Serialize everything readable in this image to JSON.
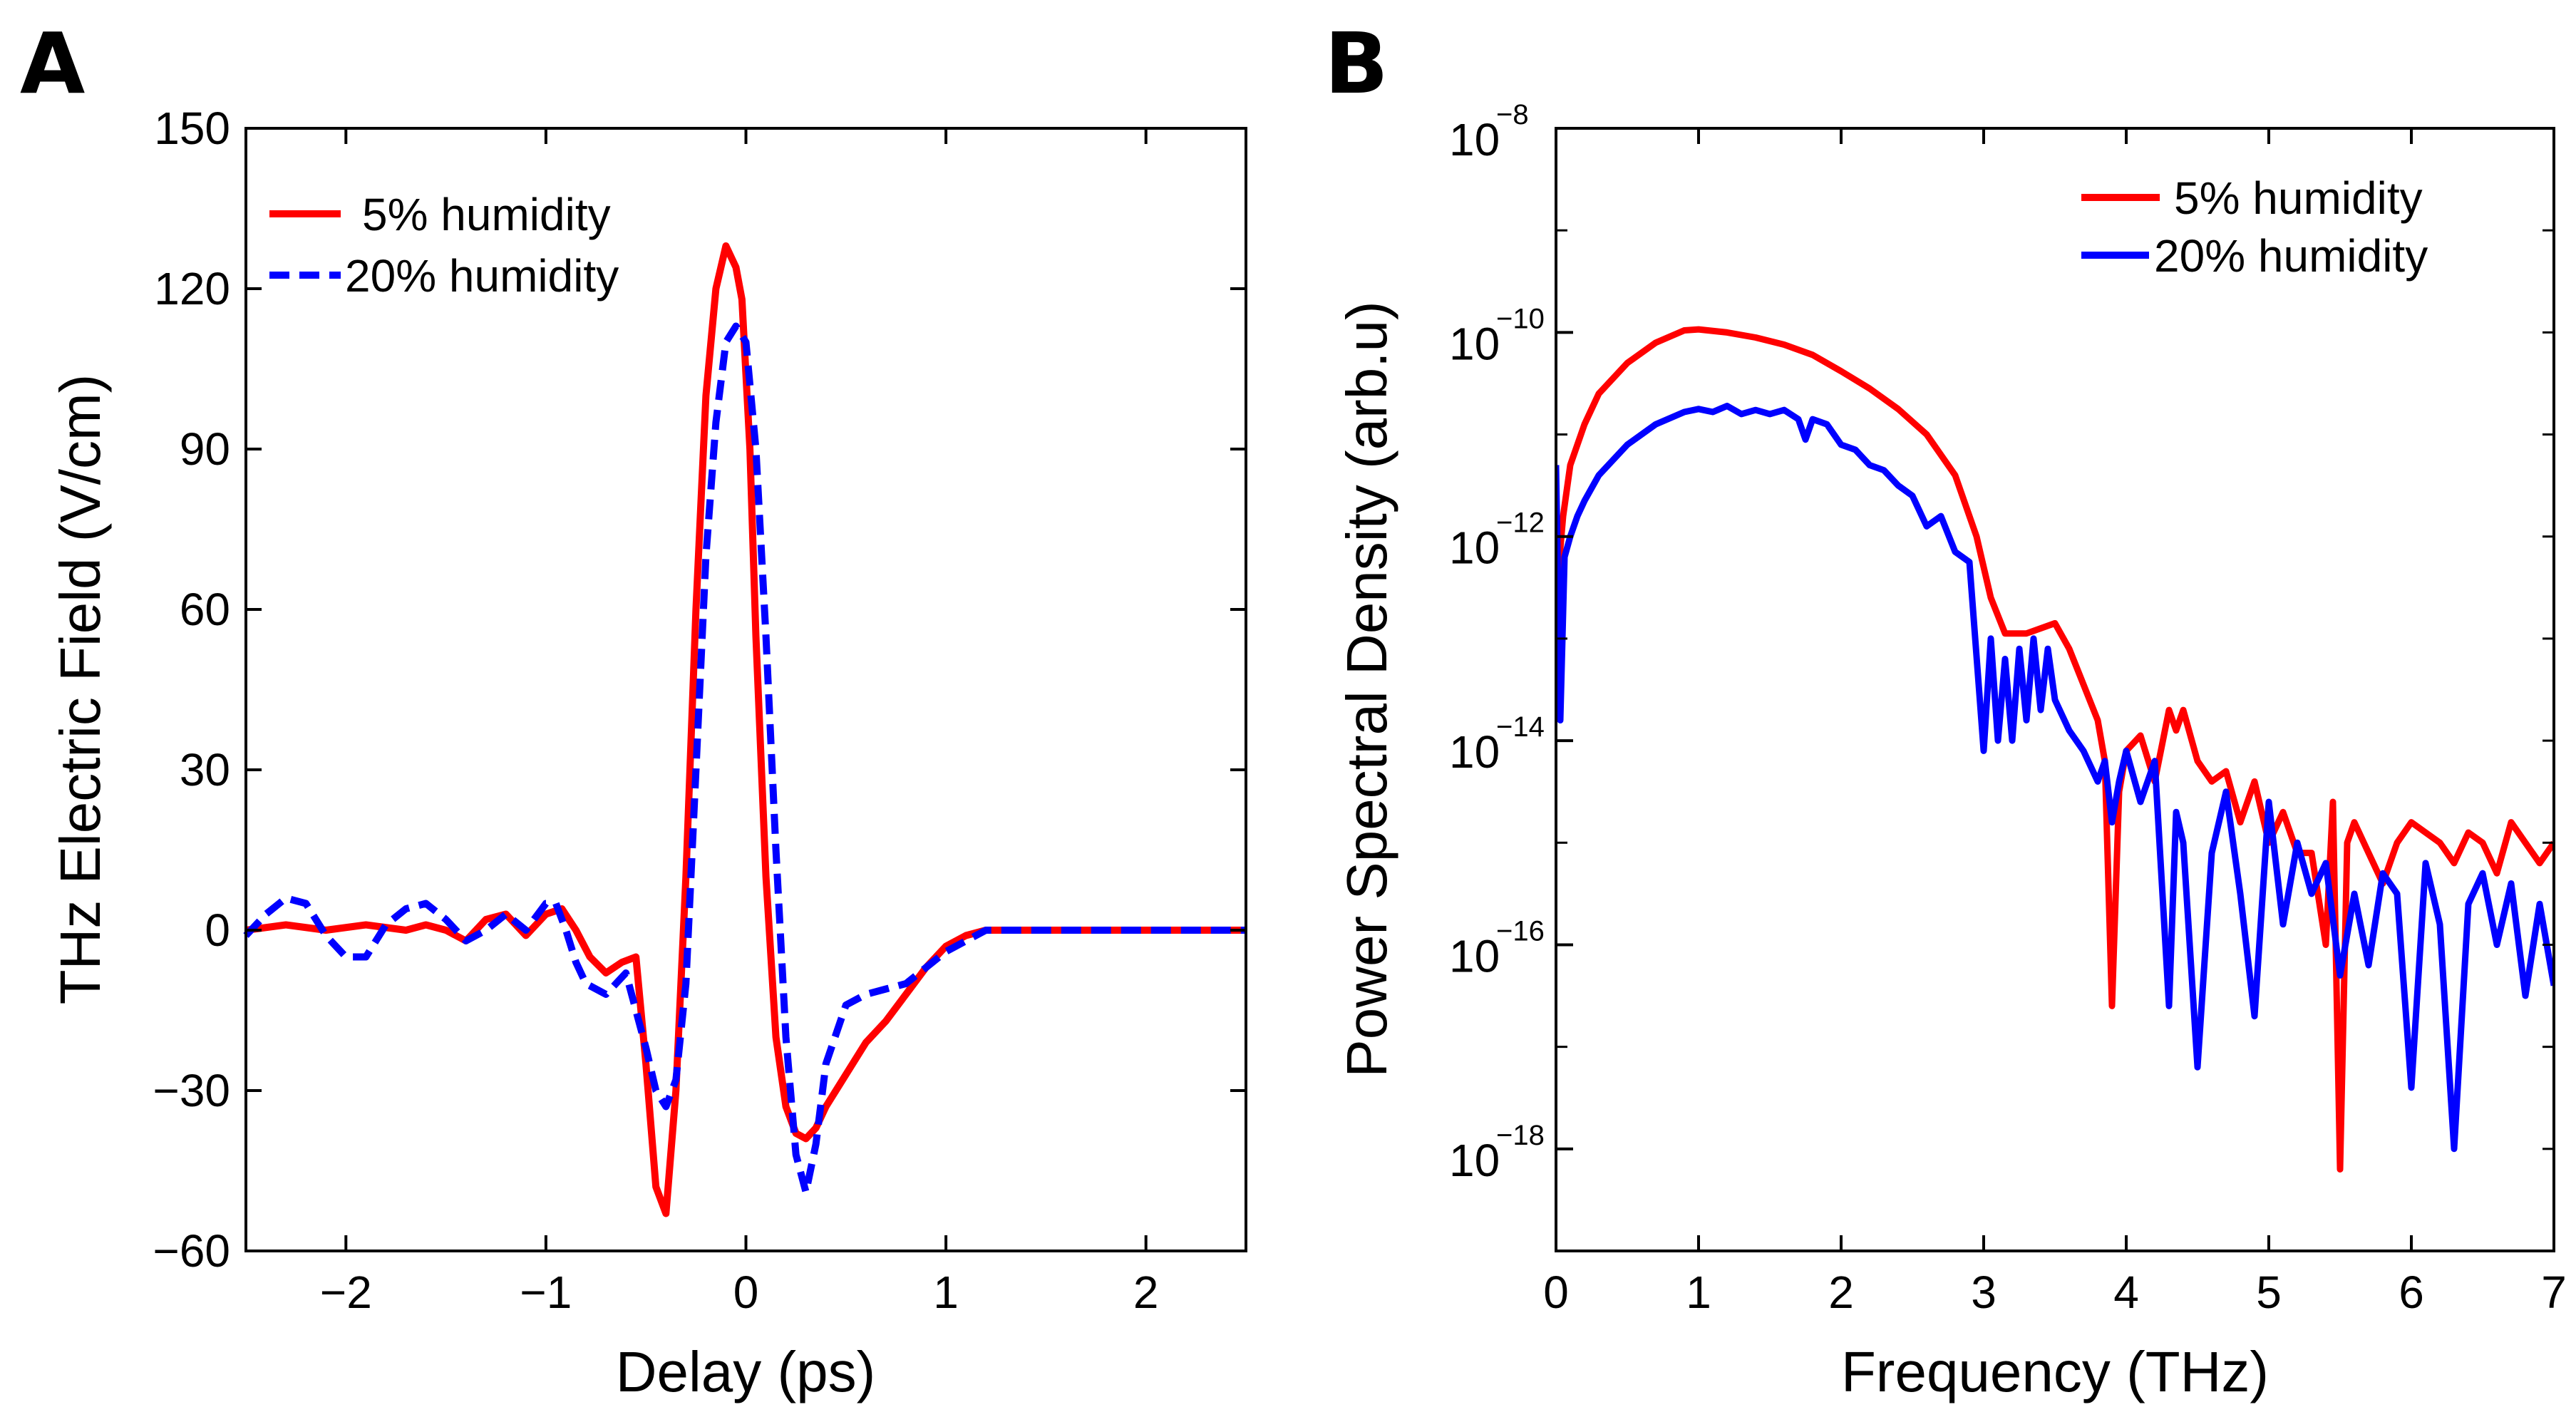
{
  "chart_data": [
    {
      "panel": "A",
      "type": "line",
      "xlabel": "Delay (ps)",
      "ylabel": "THz Electric Field (V/cm)",
      "xlim": [
        -2.5,
        2.5
      ],
      "ylim": [
        -60,
        150
      ],
      "xticks": [
        -2,
        -1,
        0,
        1,
        2
      ],
      "yticks": [
        -60,
        -30,
        0,
        30,
        60,
        90,
        120,
        150
      ],
      "xtick_labels": [
        "−2",
        "−1",
        "0",
        "1",
        "2"
      ],
      "ytick_labels": [
        "−60",
        "−30",
        "0",
        "30",
        "60",
        "90",
        "120",
        "150"
      ],
      "legend_position": "top-left",
      "series": [
        {
          "name": "5% humidity",
          "color": "#ff0000",
          "style": "solid",
          "x": [
            -2.5,
            -2.3,
            -2.1,
            -1.9,
            -1.7,
            -1.6,
            -1.5,
            -1.4,
            -1.3,
            -1.2,
            -1.1,
            -1.0,
            -0.92,
            -0.85,
            -0.78,
            -0.7,
            -0.62,
            -0.55,
            -0.5,
            -0.45,
            -0.4,
            -0.35,
            -0.3,
            -0.25,
            -0.2,
            -0.15,
            -0.1,
            -0.05,
            -0.02,
            0.02,
            0.05,
            0.1,
            0.15,
            0.2,
            0.25,
            0.3,
            0.35,
            0.4,
            0.5,
            0.6,
            0.7,
            0.8,
            0.9,
            1.0,
            1.1,
            1.2,
            1.4,
            1.7,
            2.0,
            2.5
          ],
          "y": [
            0,
            1,
            0,
            1,
            0,
            1,
            0,
            -2,
            2,
            3,
            -1,
            3,
            4,
            0,
            -5,
            -8,
            -6,
            -5,
            -25,
            -48,
            -53,
            -30,
            10,
            60,
            100,
            120,
            128,
            124,
            118,
            90,
            55,
            10,
            -20,
            -33,
            -38,
            -39,
            -37,
            -33,
            -27,
            -21,
            -17,
            -12,
            -7,
            -3,
            -1,
            0,
            0,
            0,
            0,
            0
          ]
        },
        {
          "name": "20% humidity",
          "color": "#0000ff",
          "style": "dashed",
          "x": [
            -2.5,
            -2.4,
            -2.3,
            -2.2,
            -2.1,
            -2.0,
            -1.9,
            -1.8,
            -1.7,
            -1.6,
            -1.5,
            -1.4,
            -1.3,
            -1.2,
            -1.1,
            -1.0,
            -0.95,
            -0.9,
            -0.85,
            -0.8,
            -0.7,
            -0.6,
            -0.5,
            -0.45,
            -0.4,
            -0.35,
            -0.3,
            -0.25,
            -0.2,
            -0.15,
            -0.1,
            -0.05,
            0.0,
            0.05,
            0.1,
            0.15,
            0.2,
            0.25,
            0.3,
            0.35,
            0.4,
            0.5,
            0.6,
            0.7,
            0.8,
            0.9,
            1.0,
            1.1,
            1.2,
            1.4,
            1.7,
            2.0,
            2.5
          ],
          "y": [
            -1,
            3,
            6,
            5,
            -1,
            -5,
            -5,
            1,
            4,
            5,
            2,
            -2,
            0,
            3,
            0,
            5,
            5,
            0,
            -6,
            -10,
            -12,
            -8,
            -22,
            -30,
            -33,
            -28,
            -10,
            30,
            70,
            95,
            110,
            113,
            110,
            90,
            55,
            15,
            -20,
            -42,
            -49,
            -40,
            -25,
            -14,
            -12,
            -11,
            -10,
            -7,
            -4,
            -2,
            0,
            0,
            0,
            0,
            0
          ]
        }
      ]
    },
    {
      "panel": "B",
      "type": "line",
      "xlabel": "Frequency (THz)",
      "ylabel": "Power Spectral Density (arb.u)",
      "xlim": [
        0,
        7
      ],
      "ylim_log10": [
        -19,
        -8
      ],
      "yscale": "log",
      "xticks": [
        0,
        1,
        2,
        3,
        4,
        5,
        6,
        7
      ],
      "xtick_labels": [
        "0",
        "1",
        "2",
        "3",
        "4",
        "5",
        "6",
        "7"
      ],
      "ytick_exponents": [
        -18,
        -16,
        -14,
        -12,
        -10,
        -8
      ],
      "ytick_base": "10",
      "ytick_exponent_labels": [
        "−18",
        "−16",
        "−14",
        "−12",
        "−10",
        "−8"
      ],
      "legend_position": "top-right",
      "series": [
        {
          "name": "5% humidity",
          "color": "#ff0000",
          "style": "solid",
          "x": [
            0.0,
            0.05,
            0.1,
            0.2,
            0.3,
            0.5,
            0.7,
            0.9,
            1.0,
            1.2,
            1.4,
            1.6,
            1.8,
            2.0,
            2.2,
            2.4,
            2.6,
            2.8,
            2.95,
            3.05,
            3.15,
            3.3,
            3.5,
            3.6,
            3.7,
            3.8,
            3.85,
            3.9,
            3.95,
            4.0,
            4.1,
            4.2,
            4.3,
            4.35,
            4.4,
            4.5,
            4.6,
            4.7,
            4.8,
            4.9,
            5.0,
            5.1,
            5.2,
            5.3,
            5.4,
            5.45,
            5.5,
            5.55,
            5.6,
            5.7,
            5.8,
            5.9,
            6.0,
            6.1,
            6.2,
            6.3,
            6.4,
            6.5,
            6.6,
            6.7,
            6.8,
            6.9,
            7.0
          ],
          "logy": [
            -12.6,
            -11.8,
            -11.3,
            -10.9,
            -10.6,
            -10.3,
            -10.1,
            -9.98,
            -9.97,
            -10.0,
            -10.05,
            -10.12,
            -10.22,
            -10.38,
            -10.55,
            -10.75,
            -11.0,
            -11.4,
            -12.0,
            -12.6,
            -12.95,
            -12.95,
            -12.85,
            -13.1,
            -13.45,
            -13.8,
            -14.2,
            -16.6,
            -14.5,
            -14.1,
            -13.95,
            -14.4,
            -13.7,
            -13.9,
            -13.7,
            -14.2,
            -14.4,
            -14.3,
            -14.8,
            -14.4,
            -15.0,
            -14.7,
            -15.1,
            -15.1,
            -16.0,
            -14.6,
            -18.2,
            -15.0,
            -14.8,
            -15.1,
            -15.4,
            -15.0,
            -14.8,
            -14.9,
            -15.0,
            -15.2,
            -14.9,
            -15.0,
            -15.3,
            -14.8,
            -15.0,
            -15.2,
            -15.0
          ]
        },
        {
          "name": "20% humidity",
          "color": "#0000ff",
          "style": "solid",
          "x": [
            0.0,
            0.03,
            0.06,
            0.1,
            0.15,
            0.2,
            0.3,
            0.5,
            0.7,
            0.9,
            1.0,
            1.1,
            1.2,
            1.3,
            1.4,
            1.5,
            1.6,
            1.7,
            1.75,
            1.8,
            1.9,
            2.0,
            2.1,
            2.2,
            2.3,
            2.4,
            2.5,
            2.6,
            2.7,
            2.8,
            2.9,
            3.0,
            3.05,
            3.1,
            3.15,
            3.2,
            3.25,
            3.3,
            3.35,
            3.4,
            3.45,
            3.5,
            3.6,
            3.7,
            3.8,
            3.85,
            3.9,
            3.95,
            4.0,
            4.1,
            4.2,
            4.3,
            4.35,
            4.4,
            4.5,
            4.6,
            4.7,
            4.8,
            4.9,
            5.0,
            5.1,
            5.2,
            5.3,
            5.4,
            5.5,
            5.6,
            5.7,
            5.8,
            5.9,
            6.0,
            6.1,
            6.2,
            6.3,
            6.4,
            6.5,
            6.6,
            6.7,
            6.8,
            6.9,
            7.0
          ],
          "logy": [
            -11.3,
            -13.8,
            -12.2,
            -12.0,
            -11.8,
            -11.65,
            -11.4,
            -11.1,
            -10.9,
            -10.78,
            -10.75,
            -10.78,
            -10.72,
            -10.8,
            -10.76,
            -10.8,
            -10.76,
            -10.85,
            -11.05,
            -10.85,
            -10.9,
            -11.1,
            -11.15,
            -11.3,
            -11.35,
            -11.5,
            -11.6,
            -11.9,
            -11.8,
            -12.15,
            -12.25,
            -14.1,
            -13.0,
            -14.0,
            -13.2,
            -14.0,
            -13.1,
            -13.8,
            -13.0,
            -13.7,
            -13.1,
            -13.6,
            -13.9,
            -14.1,
            -14.4,
            -14.2,
            -14.8,
            -14.4,
            -14.1,
            -14.6,
            -14.2,
            -16.6,
            -14.7,
            -15.0,
            -17.2,
            -15.1,
            -14.5,
            -15.5,
            -16.7,
            -14.6,
            -15.8,
            -15.0,
            -15.5,
            -15.2,
            -16.3,
            -15.5,
            -16.2,
            -15.3,
            -15.5,
            -17.4,
            -15.2,
            -15.8,
            -18.0,
            -15.6,
            -15.3,
            -16.0,
            -15.4,
            -16.5,
            -15.6,
            -16.4
          ]
        }
      ]
    }
  ],
  "panels": {
    "a": {
      "letter": "A",
      "xlabel": "Delay (ps)",
      "ylabel": "THz Electric Field (V/cm)",
      "legend": [
        "5% humidity",
        "20% humidity"
      ]
    },
    "b": {
      "letter": "B",
      "xlabel": "Frequency (THz)",
      "ylabel": "Power Spectral Density (arb.u)",
      "legend": [
        "5% humidity",
        "20% humidity"
      ]
    }
  }
}
